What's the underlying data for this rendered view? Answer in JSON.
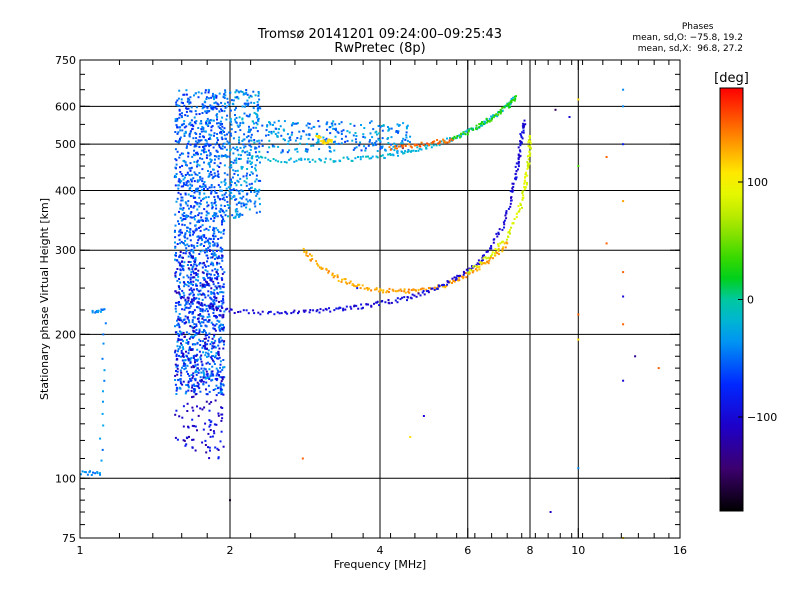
{
  "chart_data": {
    "type": "scatter",
    "title": "Tromsø 20141201 09:24:00–09:25:43",
    "subtitle": "RwPretec (8p)",
    "xlabel": "Frequency [MHz]",
    "ylabel": "Stationary phase Virtual Height [km]",
    "x_scale": "log",
    "y_scale": "log",
    "xlim": [
      1,
      16
    ],
    "ylim": [
      75,
      750
    ],
    "x_ticks": [
      1,
      2,
      4,
      6,
      8,
      10,
      16
    ],
    "x_tick_labels": [
      "1",
      "2",
      "4",
      "6",
      "8",
      "10",
      "16"
    ],
    "y_ticks": [
      75,
      100,
      200,
      300,
      400,
      500,
      600,
      750
    ],
    "y_tick_labels": [
      "75",
      "100",
      "200",
      "300",
      "400",
      "500",
      "600",
      "750"
    ],
    "grid_x": [
      2,
      4,
      6,
      8,
      10
    ],
    "grid_y": [
      100,
      200,
      300,
      400,
      500,
      600
    ],
    "grid": true,
    "phases_box": {
      "title": "Phases",
      "line1": "mean, sd,O: −75.8, 19.2",
      "line2": "mean, sd,X:  96.8, 27.2"
    },
    "colorbar": {
      "label": "[deg]",
      "min": -180,
      "max": 180,
      "ticks": [
        100,
        0,
        -100
      ],
      "tick_labels": [
        "100",
        "0",
        "−100"
      ],
      "colormap": "rainbow"
    },
    "traces": [
      {
        "phase": 130,
        "points": [
          [
            2.8,
            300
          ],
          [
            3.0,
            280
          ],
          [
            3.3,
            262
          ],
          [
            3.6,
            253
          ],
          [
            4.0,
            247
          ],
          [
            4.4,
            246
          ],
          [
            4.8,
            247
          ],
          [
            5.3,
            252
          ],
          [
            5.8,
            262
          ],
          [
            6.3,
            275
          ],
          [
            6.8,
            292
          ],
          [
            7.2,
            310
          ]
        ]
      },
      {
        "phase": -100,
        "points": [
          [
            1.6,
            240
          ],
          [
            1.8,
            228
          ],
          [
            2.0,
            224
          ],
          [
            2.4,
            222
          ],
          [
            2.8,
            223
          ],
          [
            3.2,
            225
          ],
          [
            3.6,
            228
          ],
          [
            4.0,
            232
          ],
          [
            4.5,
            238
          ],
          [
            5.0,
            246
          ],
          [
            5.5,
            258
          ],
          [
            6.0,
            272
          ],
          [
            6.5,
            292
          ],
          [
            7.0,
            330
          ],
          [
            7.3,
            380
          ],
          [
            7.5,
            430
          ],
          [
            7.6,
            470
          ],
          [
            7.7,
            520
          ],
          [
            7.8,
            560
          ]
        ]
      },
      {
        "phase": 85,
        "points": [
          [
            6.0,
            270
          ],
          [
            6.6,
            290
          ],
          [
            7.2,
            320
          ],
          [
            7.6,
            360
          ],
          [
            7.8,
            400
          ],
          [
            7.9,
            440
          ],
          [
            8.0,
            480
          ],
          [
            8.0,
            520
          ]
        ]
      },
      {
        "phase": -20,
        "points": [
          [
            2.2,
            470
          ],
          [
            2.6,
            462
          ],
          [
            3.0,
            462
          ],
          [
            3.5,
            465
          ],
          [
            4.0,
            470
          ],
          [
            4.5,
            480
          ],
          [
            5.0,
            495
          ],
          [
            5.5,
            510
          ],
          [
            6.0,
            530
          ],
          [
            6.5,
            555
          ],
          [
            7.0,
            585
          ],
          [
            7.4,
            625
          ]
        ]
      },
      {
        "phase": 150,
        "points": [
          [
            4.2,
            490
          ],
          [
            4.7,
            497
          ],
          [
            5.2,
            505
          ],
          [
            5.6,
            510
          ]
        ]
      },
      {
        "phase": 30,
        "points": [
          [
            5.6,
            510
          ],
          [
            6.2,
            540
          ],
          [
            6.7,
            565
          ],
          [
            7.2,
            600
          ],
          [
            7.5,
            630
          ]
        ]
      },
      {
        "phase": 110,
        "points": [
          [
            3.0,
            520
          ],
          [
            3.1,
            500
          ],
          [
            3.2,
            510
          ]
        ]
      },
      {
        "phase": -40,
        "points": [
          [
            1.0,
            103
          ],
          [
            1.1,
            102
          ],
          [
            1.12,
            225
          ],
          [
            1.06,
            224
          ]
        ]
      }
    ],
    "clouds": [
      {
        "phase": -55,
        "x": [
          1.55,
          1.95
        ],
        "y": [
          150,
          650
        ],
        "count": 1400
      },
      {
        "phase": -100,
        "x": [
          1.55,
          1.95
        ],
        "y": [
          110,
          300
        ],
        "count": 300
      },
      {
        "phase": -40,
        "x": [
          1.95,
          2.3
        ],
        "y": [
          350,
          650
        ],
        "count": 350
      },
      {
        "phase": -40,
        "x": [
          2.3,
          4.6
        ],
        "y": [
          480,
          560
        ],
        "count": 250
      }
    ],
    "scatter_points": [
      {
        "x": 8.8,
        "y": 85,
        "phase": -110
      },
      {
        "x": 10.0,
        "y": 105,
        "phase": -40
      },
      {
        "x": 12.3,
        "y": 650,
        "phase": -40
      },
      {
        "x": 12.3,
        "y": 600,
        "phase": -40
      },
      {
        "x": 12.3,
        "y": 500,
        "phase": -80
      },
      {
        "x": 12.3,
        "y": 380,
        "phase": 130
      },
      {
        "x": 12.3,
        "y": 270,
        "phase": 150
      },
      {
        "x": 12.3,
        "y": 240,
        "phase": -100
      },
      {
        "x": 12.3,
        "y": 210,
        "phase": 150
      },
      {
        "x": 12.3,
        "y": 160,
        "phase": -100
      },
      {
        "x": 12.3,
        "y": 75,
        "phase": 110
      },
      {
        "x": 10.0,
        "y": 620,
        "phase": 110
      },
      {
        "x": 9.6,
        "y": 570,
        "phase": -100
      },
      {
        "x": 10.0,
        "y": 450,
        "phase": 40
      },
      {
        "x": 11.4,
        "y": 470,
        "phase": 150
      },
      {
        "x": 11.4,
        "y": 310,
        "phase": 150
      },
      {
        "x": 10.0,
        "y": 220,
        "phase": 150
      },
      {
        "x": 10.0,
        "y": 195,
        "phase": 110
      },
      {
        "x": 14.5,
        "y": 170,
        "phase": 150
      },
      {
        "x": 13.0,
        "y": 180,
        "phase": -130
      },
      {
        "x": 9.0,
        "y": 590,
        "phase": -150
      },
      {
        "x": 3.6,
        "y": 250,
        "phase": -80
      },
      {
        "x": 4.9,
        "y": 135,
        "phase": -100
      },
      {
        "x": 4.6,
        "y": 122,
        "phase": 110
      },
      {
        "x": 2.0,
        "y": 90,
        "phase": -170
      },
      {
        "x": 2.8,
        "y": 110,
        "phase": 150
      }
    ]
  }
}
